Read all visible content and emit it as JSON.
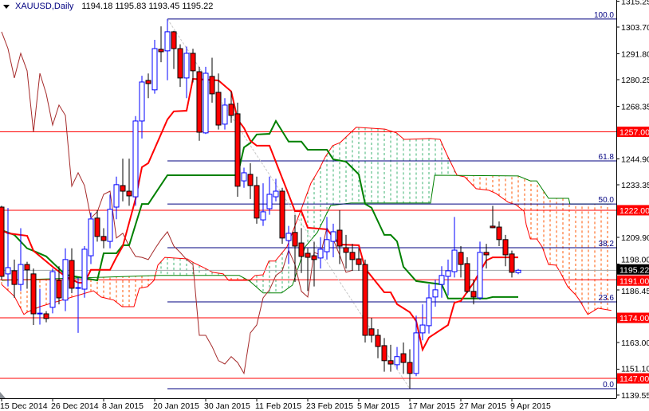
{
  "header": {
    "symbol": "XAUUSD,Daily",
    "ohlc": "1194.18 1195.83 1193.45 1195.22"
  },
  "chart_data": {
    "type": "candlestick",
    "symbol": "XAUUSD",
    "timeframe": "Daily",
    "ylim": [
      1138.13,
      1315.78
    ],
    "y_ticks": [
      "1315.25",
      "1303.70",
      "1291.80",
      "1280.25",
      "1268.35",
      "1244.90",
      "1233.35",
      "1209.90",
      "1198.00",
      "1186.45",
      "1163.00",
      "1151.10",
      "1139.55"
    ],
    "x_ticks": [
      {
        "label": "15 Dec 2014",
        "bar": 0
      },
      {
        "label": "26 Dec 2014",
        "bar": 8
      },
      {
        "label": "8 Jan 2015",
        "bar": 16
      },
      {
        "label": "20 Jan 2015",
        "bar": 24
      },
      {
        "label": "30 Jan 2015",
        "bar": 32
      },
      {
        "label": "11 Feb 2015",
        "bar": 40
      },
      {
        "label": "23 Feb 2015",
        "bar": 48
      },
      {
        "label": "5 Mar 2015",
        "bar": 56
      },
      {
        "label": "17 Mar 2015",
        "bar": 64
      },
      {
        "label": "27 Mar 2015",
        "bar": 72
      },
      {
        "label": "9 Apr 2015",
        "bar": 80
      }
    ],
    "candles": [
      [
        1223.4,
        1224,
        1191,
        1192.5
      ],
      [
        1193.6,
        1223,
        1188,
        1196.4
      ],
      [
        1195.0,
        1200,
        1183,
        1188.9
      ],
      [
        1188.9,
        1214,
        1186,
        1197.8
      ],
      [
        1197.8,
        1199,
        1187,
        1195.4
      ],
      [
        1193.6,
        1196,
        1170.8,
        1175.8
      ],
      [
        1175.8,
        1187,
        1171,
        1176.1
      ],
      [
        1175.8,
        1177,
        1172,
        1173.7
      ],
      [
        1178.7,
        1196,
        1176,
        1194.6
      ],
      [
        1190.7,
        1197,
        1180,
        1182.9
      ],
      [
        1181.9,
        1205,
        1177,
        1200.0
      ],
      [
        1199.6,
        1205,
        1185,
        1187.2
      ],
      [
        1187.2,
        1192,
        1167.3,
        1187.5
      ],
      [
        1186.8,
        1206,
        1183,
        1204.6
      ],
      [
        1201.7,
        1221,
        1198,
        1218.1
      ],
      [
        1218.5,
        1222,
        1208,
        1210.3
      ],
      [
        1210.3,
        1214,
        1205,
        1208.5
      ],
      [
        1208.1,
        1229,
        1205,
        1222.4
      ],
      [
        1223.4,
        1237,
        1218,
        1233.4
      ],
      [
        1233.0,
        1245,
        1226,
        1230.5
      ],
      [
        1230.5,
        1245,
        1224,
        1228.4
      ],
      [
        1228.0,
        1264,
        1224,
        1261.8
      ],
      [
        1261.8,
        1282,
        1254,
        1279.2
      ],
      [
        1279.9,
        1283,
        1272,
        1278.5
      ],
      [
        1275.7,
        1298,
        1274,
        1294.1
      ],
      [
        1293.8,
        1304,
        1288,
        1292.7
      ],
      [
        1293.1,
        1307.3,
        1280,
        1301.6
      ],
      [
        1301.6,
        1302,
        1285,
        1294.1
      ],
      [
        1294.1,
        1296,
        1277,
        1281.0
      ],
      [
        1281.0,
        1295,
        1272,
        1292.0
      ],
      [
        1292.0,
        1294,
        1279,
        1284.2
      ],
      [
        1283.8,
        1286,
        1253,
        1256.8
      ],
      [
        1256.5,
        1286,
        1256,
        1283.1
      ],
      [
        1281.7,
        1290,
        1270,
        1273.9
      ],
      [
        1274.6,
        1283,
        1258,
        1260.0
      ],
      [
        1260.4,
        1272,
        1258,
        1268.9
      ],
      [
        1269.3,
        1275,
        1261,
        1264.3
      ],
      [
        1265.0,
        1270,
        1228,
        1232.7
      ],
      [
        1235.1,
        1241,
        1232,
        1238.7
      ],
      [
        1238.0,
        1243,
        1227,
        1233.0
      ],
      [
        1233.0,
        1237,
        1216,
        1218.5
      ],
      [
        1217.7,
        1234,
        1215,
        1221.3
      ],
      [
        1222.7,
        1237,
        1220,
        1229.1
      ],
      [
        1228.0,
        1236,
        1226,
        1230.5
      ],
      [
        1230.5,
        1232,
        1207,
        1209.6
      ],
      [
        1208.5,
        1215,
        1198,
        1211.7
      ],
      [
        1212.1,
        1220,
        1190,
        1206.0
      ],
      [
        1207.4,
        1214,
        1194,
        1201.4
      ],
      [
        1202.8,
        1205,
        1186,
        1201.0
      ],
      [
        1201.7,
        1208,
        1188,
        1200.0
      ],
      [
        1200.7,
        1210,
        1196,
        1204.6
      ],
      [
        1203.5,
        1219,
        1200,
        1208.9
      ],
      [
        1208.1,
        1216,
        1201,
        1212.4
      ],
      [
        1213.1,
        1222,
        1198,
        1206.0
      ],
      [
        1205.3,
        1211,
        1196,
        1203.2
      ],
      [
        1203.2,
        1207,
        1195,
        1200.0
      ],
      [
        1200.3,
        1205,
        1195,
        1197.8
      ],
      [
        1197.8,
        1200,
        1163,
        1166.2
      ],
      [
        1169.1,
        1174,
        1163,
        1166.2
      ],
      [
        1166.2,
        1169,
        1156,
        1161.2
      ],
      [
        1161.6,
        1165,
        1150,
        1154.9
      ],
      [
        1154.9,
        1162,
        1150,
        1153.4
      ],
      [
        1153.1,
        1161,
        1151,
        1156.7
      ],
      [
        1158.0,
        1163,
        1149,
        1154.1
      ],
      [
        1154.1,
        1160,
        1142.4,
        1149.2
      ],
      [
        1149.2,
        1175,
        1148,
        1167.3
      ],
      [
        1167.3,
        1180,
        1164,
        1170.8
      ],
      [
        1170.5,
        1189,
        1167,
        1182.9
      ],
      [
        1183.3,
        1191,
        1179,
        1186.5
      ],
      [
        1188.9,
        1197,
        1183,
        1192.9
      ],
      [
        1192.5,
        1200,
        1184,
        1195.0
      ],
      [
        1194.6,
        1219,
        1192,
        1204.2
      ],
      [
        1203.2,
        1206,
        1192,
        1197.8
      ],
      [
        1198.2,
        1201,
        1185,
        1185.8
      ],
      [
        1185.8,
        1191,
        1180,
        1183.3
      ],
      [
        1182.9,
        1208,
        1182,
        1203.2
      ],
      [
        1203.2,
        1207,
        1196,
        1202.1
      ],
      [
        1214.9,
        1224,
        1214,
        1214.2
      ],
      [
        1214.5,
        1217,
        1206,
        1208.9
      ],
      [
        1208.9,
        1211,
        1197,
        1202.1
      ],
      [
        1202.5,
        1204,
        1192,
        1194.3
      ],
      [
        1194.18,
        1195.83,
        1193.45,
        1195.22
      ]
    ],
    "ichimoku": {
      "tenkan": [
        [
          0,
          1213.1
        ],
        [
          1,
          1211.7
        ],
        [
          4,
          1210.6
        ],
        [
          5,
          1203.9
        ],
        [
          8,
          1196.8
        ],
        [
          10,
          1192.5
        ],
        [
          12,
          1189.7
        ],
        [
          13,
          1189.7
        ],
        [
          14,
          1195.4
        ],
        [
          17,
          1195.4
        ],
        [
          18,
          1201.0
        ],
        [
          19,
          1206.0
        ],
        [
          21,
          1227.0
        ],
        [
          22,
          1241.2
        ],
        [
          23,
          1243.0
        ],
        [
          26,
          1262.5
        ],
        [
          27,
          1266.1
        ],
        [
          29,
          1266.4
        ],
        [
          30,
          1280.6
        ],
        [
          34,
          1279.9
        ],
        [
          36,
          1275.0
        ],
        [
          37,
          1262.5
        ],
        [
          38,
          1258.7
        ],
        [
          39,
          1253.0
        ],
        [
          40,
          1250.8
        ],
        [
          42,
          1250.8
        ],
        [
          45,
          1229.0
        ],
        [
          46,
          1221.6
        ],
        [
          47,
          1221.6
        ],
        [
          48,
          1214.2
        ],
        [
          51,
          1213.5
        ],
        [
          53,
          1206.7
        ],
        [
          56,
          1206.4
        ],
        [
          57,
          1196.0
        ],
        [
          60,
          1185.4
        ],
        [
          61,
          1185.4
        ],
        [
          62,
          1180.1
        ],
        [
          64,
          1176.5
        ],
        [
          65,
          1172.6
        ],
        [
          66,
          1159.8
        ],
        [
          67,
          1165.2
        ],
        [
          70,
          1170.8
        ],
        [
          71,
          1180.8
        ],
        [
          72,
          1181.5
        ],
        [
          74,
          1189.7
        ],
        [
          76,
          1199.6
        ],
        [
          77,
          1201.0
        ],
        [
          81,
          1201.0
        ]
      ],
      "kijun": [
        [
          0,
          1213.1
        ],
        [
          2,
          1211.0
        ],
        [
          4,
          1205.0
        ],
        [
          5,
          1203.9
        ],
        [
          7,
          1201.4
        ],
        [
          10,
          1193.2
        ],
        [
          15,
          1190.7
        ],
        [
          16,
          1202.8
        ],
        [
          18,
          1202.8
        ],
        [
          19,
          1206.4
        ],
        [
          20,
          1206.4
        ],
        [
          22,
          1224.8
        ],
        [
          23,
          1224.8
        ],
        [
          26,
          1237.6
        ],
        [
          37,
          1237.6
        ],
        [
          38,
          1250.0
        ],
        [
          39,
          1252.0
        ],
        [
          40,
          1255.8
        ],
        [
          42,
          1256.1
        ],
        [
          43,
          1261.8
        ],
        [
          45,
          1252.6
        ],
        [
          47,
          1252.6
        ],
        [
          48,
          1249.0
        ],
        [
          51,
          1249.0
        ],
        [
          52,
          1244.7
        ],
        [
          54,
          1243.7
        ],
        [
          56,
          1238.0
        ],
        [
          57,
          1224.8
        ],
        [
          58,
          1223.1
        ],
        [
          60,
          1211.0
        ],
        [
          61,
          1211.0
        ],
        [
          62,
          1208.1
        ],
        [
          63,
          1196.8
        ],
        [
          65,
          1190.4
        ],
        [
          69,
          1188.9
        ],
        [
          70,
          1182.6
        ],
        [
          76,
          1182.6
        ],
        [
          77,
          1183.3
        ],
        [
          81,
          1183.3
        ]
      ],
      "senkou_a": [
        [
          0,
          1188.9
        ],
        [
          2,
          1183.6
        ],
        [
          3.5,
          1175.5
        ],
        [
          4,
          1176.5
        ],
        [
          6,
          1179.0
        ],
        [
          14.4,
          1186.1
        ],
        [
          15.6,
          1183.3
        ],
        [
          17.6,
          1181.9
        ],
        [
          18.9,
          1179.0
        ],
        [
          20.75,
          1179.0
        ],
        [
          21.6,
          1187.2
        ],
        [
          22.9,
          1187.9
        ],
        [
          23.9,
          1190.7
        ],
        [
          24.5,
          1197.5
        ],
        [
          25.6,
          1201.0
        ],
        [
          29.1,
          1200.3
        ],
        [
          30.1,
          1198.6
        ],
        [
          31.9,
          1196.1
        ],
        [
          33.1,
          1194.3
        ],
        [
          34.75,
          1193.6
        ],
        [
          35.6,
          1190.7
        ],
        [
          38.9,
          1190.7
        ],
        [
          39.75,
          1192.9
        ],
        [
          41,
          1193.2
        ],
        [
          41.9,
          1199.3
        ],
        [
          42.9,
          1199.3
        ],
        [
          44.75,
          1205.7
        ],
        [
          47.25,
          1224.5
        ],
        [
          48.5,
          1234.1
        ],
        [
          49.75,
          1240.1
        ],
        [
          50.75,
          1245.8
        ],
        [
          51.9,
          1250.8
        ],
        [
          53.1,
          1252.2
        ],
        [
          55.6,
          1259.0
        ],
        [
          60.1,
          1258.2
        ],
        [
          61.9,
          1256.5
        ],
        [
          63.1,
          1253.6
        ],
        [
          67.25,
          1254.0
        ],
        [
          68.75,
          1253.6
        ],
        [
          69.75,
          1247.2
        ],
        [
          71.4,
          1237.6
        ],
        [
          72.6,
          1236.9
        ],
        [
          74.4,
          1231.6
        ],
        [
          76.4,
          1230.9
        ],
        [
          77.5,
          1229.5
        ],
        [
          79.4,
          1225.6
        ],
        [
          80.6,
          1224.5
        ],
        [
          81.9,
          1221.6
        ],
        [
          82.25,
          1215.6
        ],
        [
          82.9,
          1209.2
        ],
        [
          83.9,
          1209.2
        ],
        [
          84.75,
          1205.7
        ],
        [
          85.75,
          1197.8
        ],
        [
          86.9,
          1197.5
        ],
        [
          87.6,
          1194.3
        ],
        [
          88.75,
          1187.9
        ],
        [
          90,
          1184.3
        ],
        [
          90.6,
          1181.9
        ],
        [
          91.9,
          1175.5
        ],
        [
          93.5,
          1178.3
        ],
        [
          95.6,
          1177.3
        ]
      ],
      "senkou_b": [
        [
          0,
          1190.7
        ],
        [
          24.75,
          1192.9
        ],
        [
          37.25,
          1192.9
        ],
        [
          38.9,
          1190.4
        ],
        [
          41,
          1185.1
        ],
        [
          43.9,
          1185.1
        ],
        [
          45.6,
          1188.6
        ],
        [
          47.6,
          1205.7
        ],
        [
          49.5,
          1212.1
        ],
        [
          51.6,
          1224.1
        ],
        [
          54.75,
          1225.2
        ],
        [
          67.25,
          1225.2
        ],
        [
          67.9,
          1237.6
        ],
        [
          81,
          1237.3
        ],
        [
          82.9,
          1235.1
        ],
        [
          83.9,
          1235.1
        ],
        [
          85.75,
          1227.3
        ],
        [
          88.9,
          1227.3
        ],
        [
          89.1,
          1224.8
        ],
        [
          95.6,
          1224.8
        ]
      ],
      "chikou_shift": 26
    },
    "levels": [
      {
        "price": 1257.0,
        "label": "1257.00"
      },
      {
        "price": 1222.0,
        "label": "1222.00"
      },
      {
        "price": 1191.0,
        "label": "1191.00"
      },
      {
        "price": 1174.0,
        "label": "1174.00"
      },
      {
        "price": 1147.0,
        "label": "1147.00"
      }
    ],
    "current_price": {
      "value": 1195.22,
      "label": "1195.22"
    },
    "fibonacci": {
      "start_bar": 26,
      "levels": [
        {
          "label": "100.0",
          "price": 1307.3
        },
        {
          "label": "61.8",
          "price": 1244.0
        },
        {
          "label": "50.0",
          "price": 1224.8
        },
        {
          "label": "38.2",
          "price": 1205.3
        },
        {
          "label": "23.6",
          "price": 1181.1
        },
        {
          "label": "0.0",
          "price": 1142.4
        }
      ]
    },
    "trendline": {
      "from": [
        26,
        1307.3
      ],
      "to": [
        64,
        1142.4
      ]
    },
    "colors": {
      "bull": "#0000ff",
      "bear_body": "#ff0000",
      "bear_outline": "#000000",
      "tenkan": "#ff0000",
      "kijun": "#008000",
      "chikou": "#a52a2a",
      "senkou_a": "#ff0000",
      "senkou_b": "#008000",
      "cloud_up": "#3cb371",
      "cloud_down": "#ff5500",
      "level": "#ff0000",
      "fib": "#000080",
      "current": "#a0a4a8",
      "trendline": "#c8c8c8"
    }
  }
}
